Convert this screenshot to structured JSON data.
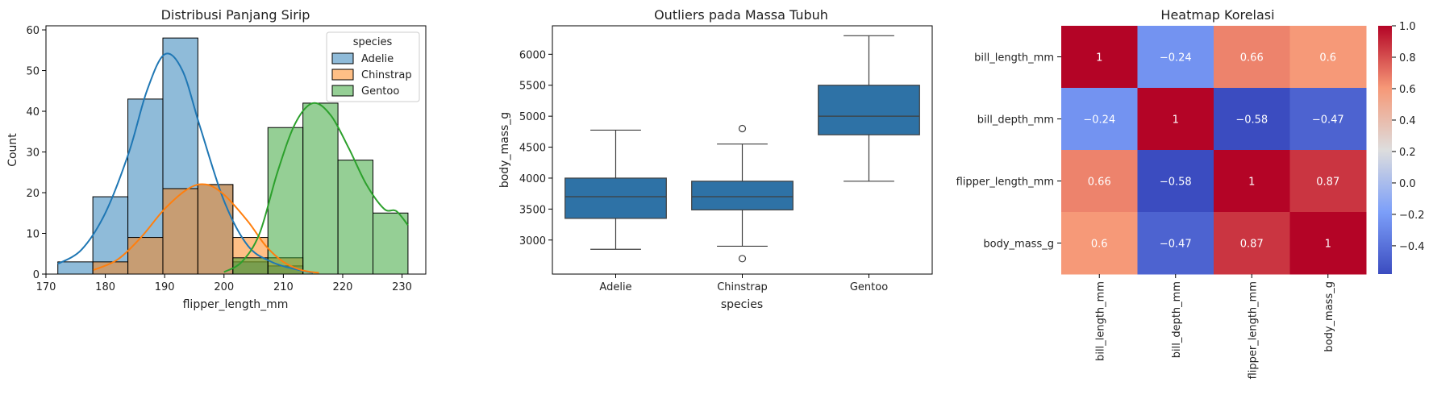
{
  "chart_data": [
    {
      "type": "bar",
      "title": "Distribusi Panjang Sirip",
      "xlabel": "flipper_length_mm",
      "ylabel": "Count",
      "xlim": [
        170,
        234
      ],
      "ylim": [
        0,
        61
      ],
      "xticks": [
        170,
        180,
        190,
        200,
        210,
        220,
        230
      ],
      "yticks": [
        0,
        10,
        20,
        30,
        40,
        50,
        60
      ],
      "bin_edges": [
        172,
        177.9,
        183.8,
        189.7,
        195.6,
        201.5,
        207.4,
        213.3,
        219.2,
        225.1,
        231
      ],
      "legend": {
        "title": "species",
        "position": "top-right"
      },
      "series": [
        {
          "name": "Adelie",
          "color": "#1f77b4",
          "counts": [
            3,
            19,
            43,
            58,
            22,
            3,
            2,
            0,
            0,
            0
          ],
          "kde": [
            [
              172,
              2.5
            ],
            [
              176,
              6
            ],
            [
              180,
              15
            ],
            [
              184,
              30
            ],
            [
              187,
              45
            ],
            [
              190,
              54
            ],
            [
              193,
              50
            ],
            [
              196,
              36
            ],
            [
              200,
              18
            ],
            [
              204,
              7
            ],
            [
              208,
              3
            ],
            [
              212,
              1.2
            ],
            [
              215,
              0.3
            ]
          ]
        },
        {
          "name": "Chinstrap",
          "color": "#ff7f0e",
          "counts": [
            0,
            3,
            9,
            21,
            22,
            9,
            4,
            0,
            0,
            0
          ],
          "kde": [
            [
              178,
              1
            ],
            [
              182,
              3.5
            ],
            [
              186,
              9
            ],
            [
              190,
              16
            ],
            [
              194,
              21
            ],
            [
              197,
              22
            ],
            [
              200,
              19.5
            ],
            [
              204,
              13
            ],
            [
              207,
              7
            ],
            [
              210,
              3
            ],
            [
              213,
              1
            ],
            [
              216,
              0.3
            ]
          ]
        },
        {
          "name": "Gentoo",
          "color": "#2ca02c",
          "counts": [
            0,
            0,
            0,
            0,
            0,
            4,
            36,
            42,
            28,
            15
          ],
          "kde": [
            [
              200,
              0.5
            ],
            [
              203,
              3
            ],
            [
              206,
              10
            ],
            [
              209,
              25
            ],
            [
              212,
              37
            ],
            [
              215,
              42
            ],
            [
              218,
              39
            ],
            [
              221,
              31
            ],
            [
              224,
              22
            ],
            [
              227,
              16
            ],
            [
              229,
              15.5
            ],
            [
              231,
              12
            ]
          ]
        }
      ]
    },
    {
      "type": "box",
      "title": "Outliers pada Massa Tubuh",
      "xlabel": "species",
      "ylabel": "body_mass_g",
      "ylim": [
        2450,
        6460
      ],
      "yticks": [
        3000,
        3500,
        4000,
        4500,
        5000,
        5500,
        6000
      ],
      "color": "#2e72a6",
      "boxes": [
        {
          "category": "Adelie",
          "whisker_low": 2850,
          "q1": 3350,
          "median": 3700,
          "q3": 4000,
          "whisker_high": 4775,
          "outliers": []
        },
        {
          "category": "Chinstrap",
          "whisker_low": 2900,
          "q1": 3487,
          "median": 3700,
          "q3": 3950,
          "whisker_high": 4550,
          "outliers": [
            2700,
            4800
          ]
        },
        {
          "category": "Gentoo",
          "whisker_low": 3950,
          "q1": 4700,
          "median": 5000,
          "q3": 5500,
          "whisker_high": 6300,
          "outliers": []
        }
      ]
    },
    {
      "type": "heatmap",
      "title": "Heatmap Korelasi",
      "labels": [
        "bill_length_mm",
        "bill_depth_mm",
        "flipper_length_mm",
        "body_mass_g"
      ],
      "matrix": [
        [
          1,
          -0.24,
          0.66,
          0.6
        ],
        [
          -0.24,
          1,
          -0.58,
          -0.47
        ],
        [
          0.66,
          -0.58,
          1,
          0.87
        ],
        [
          0.6,
          -0.47,
          0.87,
          1
        ]
      ],
      "colormap": "coolwarm",
      "vmin": -0.58,
      "vmax": 1,
      "colorbar_ticks": [
        -0.4,
        -0.2,
        0.0,
        0.2,
        0.4,
        0.6,
        0.8,
        1.0
      ],
      "colorbar_tick_labels": [
        "−0.4",
        "−0.2",
        "0.0",
        "0.2",
        "0.4",
        "0.6",
        "0.8",
        "1.0"
      ]
    }
  ]
}
